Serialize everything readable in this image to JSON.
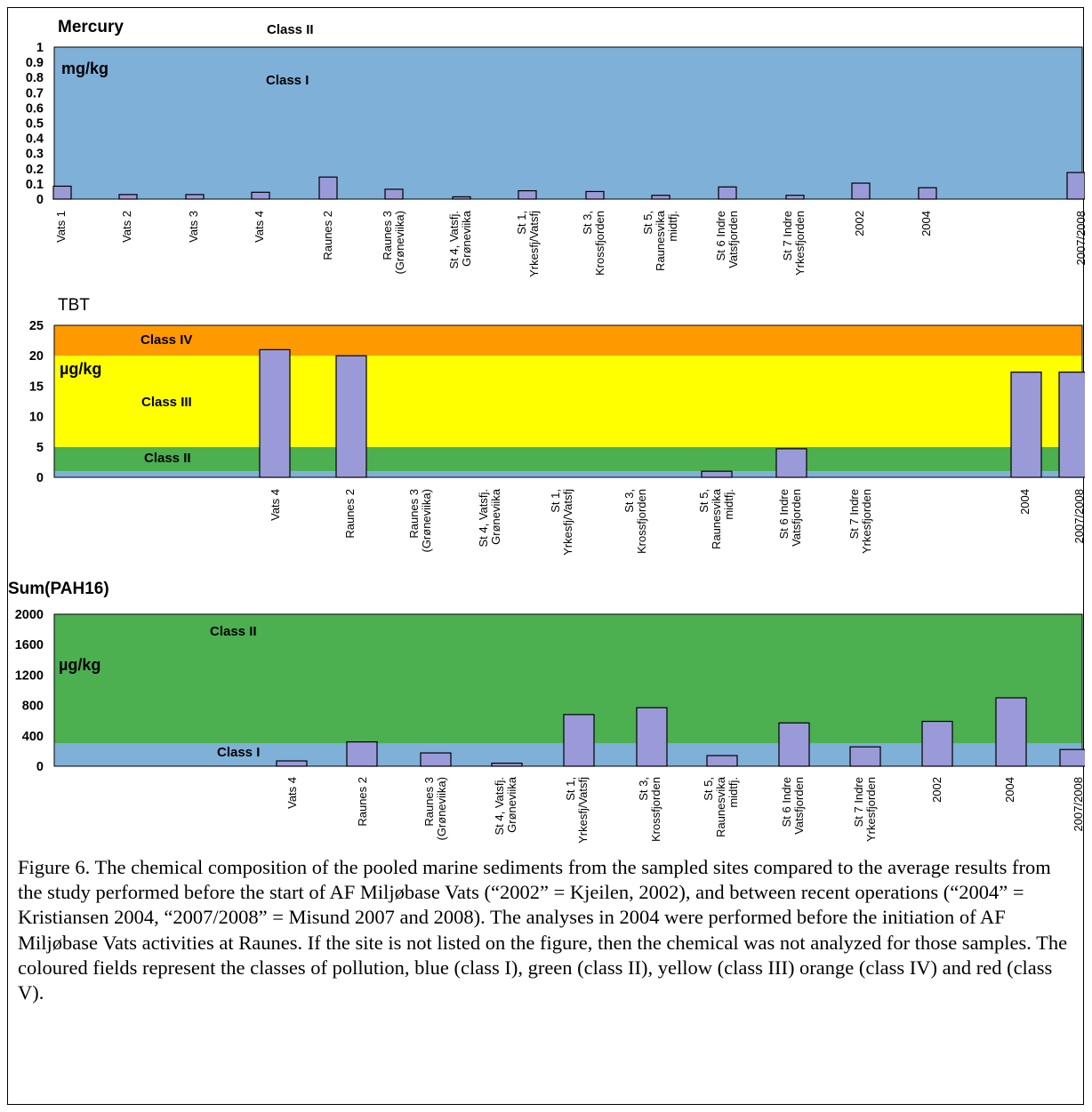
{
  "chart_data": [
    {
      "type": "bar",
      "title": "Mercury",
      "unit_label": "mg/kg",
      "ylim": [
        0,
        1
      ],
      "yticks": [
        "0",
        "0.1",
        "0.2",
        "0.3",
        "0.4",
        "0.5",
        "0.6",
        "0.7",
        "0.8",
        "0.9",
        "1"
      ],
      "bands": [
        {
          "label": "Class I",
          "from": 0,
          "to": 1,
          "color": "#7fb0d8"
        },
        {
          "label": "Class II",
          "from": 1,
          "to": 1.0,
          "color": "#4caf50"
        }
      ],
      "bar_color": "#9a9ad8",
      "categories": [
        "Vats 1",
        "Vats 2",
        "Vats 3",
        "Vats 4",
        "Raunes 2",
        "Raunes 3 (Grøneviika)",
        "St 4, Vatsfj. Grøneviika",
        "St 1, Yrkesfj/Vatsfj",
        "St 3, Krossfjorden",
        "St 5, Raunesvika midtfj.",
        "St 6 Indre Vatsfjorden",
        "St 7 Indre Yrkesfjorden",
        "2002",
        "2004",
        "2007/2008"
      ],
      "values": [
        0.085,
        0.03,
        0.03,
        0.045,
        0.145,
        0.065,
        0.015,
        0.055,
        0.05,
        0.025,
        0.08,
        0.025,
        0.105,
        0.075,
        0.175
      ]
    },
    {
      "type": "bar",
      "title": "TBT",
      "unit_label": "µg/kg",
      "ylim": [
        0,
        25
      ],
      "yticks": [
        "0",
        "5",
        "10",
        "15",
        "20",
        "25"
      ],
      "bands": [
        {
          "label": "",
          "from": 0,
          "to": 1,
          "color": "#7fb0d8"
        },
        {
          "label": "Class II",
          "from": 1,
          "to": 5,
          "color": "#4caf50"
        },
        {
          "label": "Class III",
          "from": 5,
          "to": 20,
          "color": "#ffff00"
        },
        {
          "label": "Class IV",
          "from": 20,
          "to": 25,
          "color": "#ff9900"
        }
      ],
      "bar_color": "#9a9ad8",
      "categories": [
        "Vats 4",
        "Raunes 2",
        "Raunes 3 (Grøneviika)",
        "St 4, Vatsfj. Grøneviika",
        "St 1, Yrkesfj/Vatsfj",
        "St 3, Krossfjorden",
        "St 5, Raunesvika midtfj.",
        "St 6 Indre Vatsfjorden",
        "St 7 Indre Yrkesfjorden",
        "2004",
        "2007/2008"
      ],
      "values": [
        21,
        20,
        null,
        null,
        null,
        null,
        1,
        4.7,
        null,
        17.3,
        17.3
      ]
    },
    {
      "type": "bar",
      "title": "Sum(PAH16)",
      "unit_label": "µg/kg",
      "ylim": [
        0,
        2000
      ],
      "yticks": [
        "0",
        "400",
        "800",
        "1200",
        "1600",
        "2000"
      ],
      "bands": [
        {
          "label": "Class I",
          "from": 0,
          "to": 300,
          "color": "#7fb0d8"
        },
        {
          "label": "Class II",
          "from": 300,
          "to": 2000,
          "color": "#4caf50"
        }
      ],
      "bar_color": "#9a9ad8",
      "categories": [
        "Vats 4",
        "Raunes 2",
        "Raunes 3 (Grøneviika)",
        "St 4, Vatsfj. Grøneviika",
        "St 1, Yrkesfj/Vatsfj",
        "St 3, Krossfjorden",
        "St 5, Raunesvika midtfj.",
        "St 6 Indre Vatsfjorden",
        "St 7 Indre Yrkesfjorden",
        "2002",
        "2004",
        "2007/2008"
      ],
      "values": [
        70,
        320,
        175,
        40,
        680,
        770,
        140,
        570,
        255,
        590,
        900,
        220
      ]
    }
  ],
  "mercury_extra_label": "Class II",
  "caption": "Figure 6.  The chemical composition of the pooled marine sediments from the sampled sites compared to the average results from the study performed before the start of AF Miljøbase Vats (“2002” = Kjeilen, 2002), and between recent operations (“2004” = Kristiansen 2004, “2007/2008” = Misund 2007 and 2008).  The analyses in 2004 were performed before the initiation of AF Miljøbase Vats activities at Raunes.  If the site is not listed on the figure, then the chemical was not analyzed for those samples.  The coloured fields represent the classes of pollution, blue (class I), green (class II), yellow (class III) orange (class IV) and red (class V)."
}
